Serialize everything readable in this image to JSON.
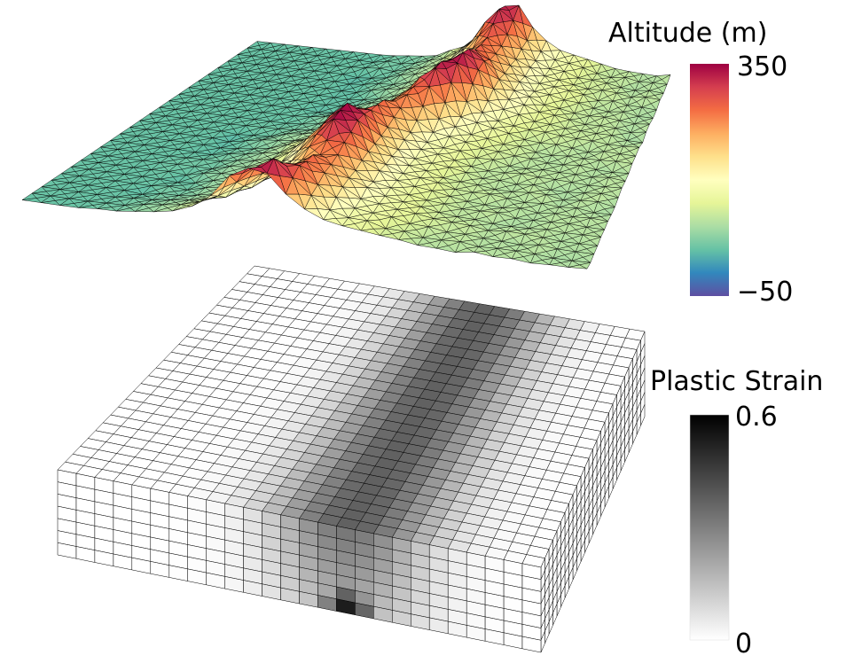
{
  "altitude_colorbar": {
    "title": "Altitude (m)",
    "max_label": "350",
    "min_label": "−50",
    "colormap": [
      "#5e4fa2",
      "#3288bd",
      "#66c2a5",
      "#abdda4",
      "#e6f598",
      "#ffffbf",
      "#fee08b",
      "#fdae61",
      "#f46d43",
      "#d53e4f",
      "#9e0142"
    ]
  },
  "strain_colorbar": {
    "title": "Plastic Strain",
    "max_label": "0.6",
    "min_label": "0",
    "colormap": [
      "#ffffff",
      "#000000"
    ]
  }
}
